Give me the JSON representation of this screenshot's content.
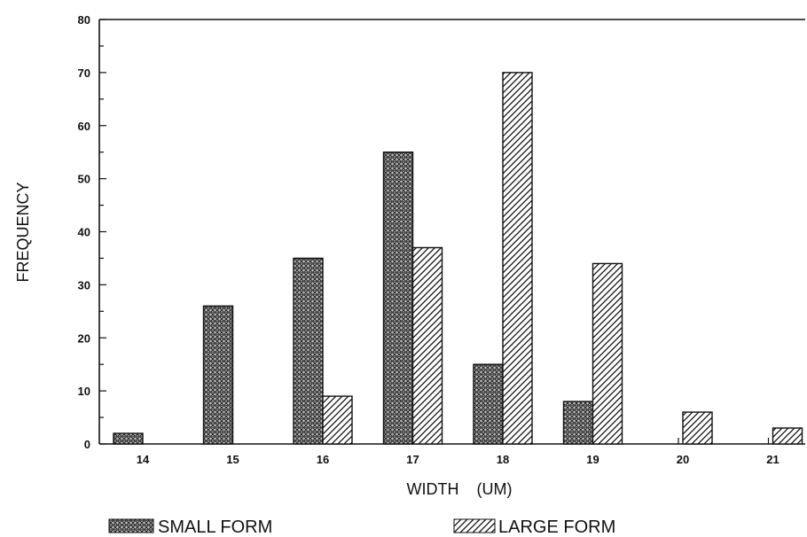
{
  "chart_data": {
    "type": "bar",
    "title": "",
    "xlabel": "WIDTH    (UM)",
    "ylabel": "FREQUENCY",
    "categories": [
      "14",
      "15",
      "16",
      "17",
      "18",
      "19",
      "20",
      "21"
    ],
    "series": [
      {
        "name": "SMALL FORM",
        "values": [
          2,
          26,
          35,
          55,
          15,
          8,
          0,
          0
        ],
        "pattern": "crosshatch"
      },
      {
        "name": "LARGE FORM",
        "values": [
          0,
          0,
          9,
          37,
          70,
          34,
          6,
          3
        ],
        "pattern": "diagonal-hatch"
      }
    ],
    "ylim": [
      0,
      80
    ],
    "yticks": [
      0,
      10,
      20,
      30,
      40,
      50,
      60,
      70,
      80
    ],
    "grid": false,
    "legend_position": "bottom",
    "colors": {
      "ink": "#111111",
      "background": "#ffffff"
    }
  }
}
